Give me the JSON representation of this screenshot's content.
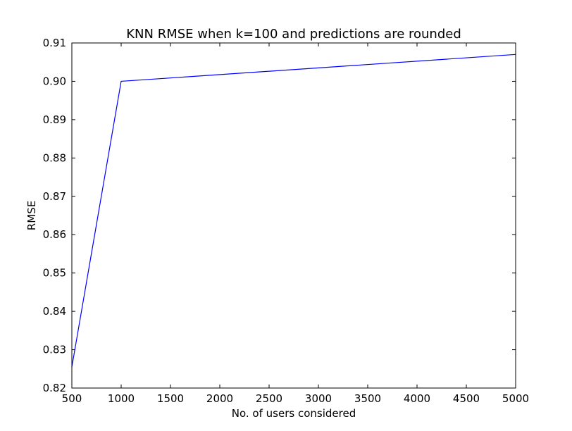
{
  "chart_data": {
    "type": "line",
    "title": "KNN RMSE when k=100 and predictions are rounded",
    "xlabel": "No. of users considered",
    "ylabel": "RMSE",
    "xlim": [
      500,
      5000
    ],
    "ylim": [
      0.82,
      0.91
    ],
    "xticks": [
      500,
      1000,
      1500,
      2000,
      2500,
      3000,
      3500,
      4000,
      4500,
      5000
    ],
    "xtick_labels": [
      "500",
      "1000",
      "1500",
      "2000",
      "2500",
      "3000",
      "3500",
      "4000",
      "4500",
      "5000"
    ],
    "yticks": [
      0.82,
      0.83,
      0.84,
      0.85,
      0.86,
      0.87,
      0.88,
      0.89,
      0.9,
      0.91
    ],
    "ytick_labels": [
      "0.82",
      "0.83",
      "0.84",
      "0.85",
      "0.86",
      "0.87",
      "0.88",
      "0.89",
      "0.90",
      "0.91"
    ],
    "grid": false,
    "legend": "none",
    "series": [
      {
        "color": "#0000ff",
        "x": [
          500,
          1000,
          5000
        ],
        "y": [
          0.8255,
          0.9,
          0.907
        ]
      }
    ]
  }
}
